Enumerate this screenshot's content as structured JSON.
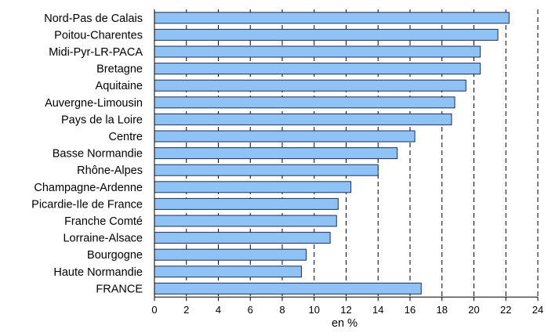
{
  "chart_data": {
    "type": "bar",
    "orientation": "horizontal",
    "categories": [
      "Nord-Pas de Calais",
      "Poitou-Charentes",
      "Midi-Pyr-LR-PACA",
      "Bretagne",
      "Aquitaine",
      "Auvergne-Limousin",
      "Pays de la Loire",
      "Centre",
      "Basse Normandie",
      "Rhône-Alpes",
      "Champagne-Ardenne",
      "Picardie-Ile de France",
      "Franche Comté",
      "Lorraine-Alsace",
      "Bourgogne",
      "Haute Normandie",
      "FRANCE"
    ],
    "values": [
      22.2,
      21.5,
      20.4,
      20.4,
      19.5,
      18.8,
      18.6,
      16.3,
      15.2,
      14.0,
      12.3,
      11.5,
      11.4,
      11.0,
      9.5,
      9.2,
      16.7
    ],
    "xlabel": "en %",
    "xlim": [
      0,
      24
    ],
    "xticks": [
      0,
      2,
      4,
      6,
      8,
      10,
      12,
      14,
      16,
      18,
      20,
      22,
      24
    ],
    "grid": "vertical dashed",
    "bar_color": "#8fc3f5",
    "bar_edge_color": "#1f2c55"
  }
}
